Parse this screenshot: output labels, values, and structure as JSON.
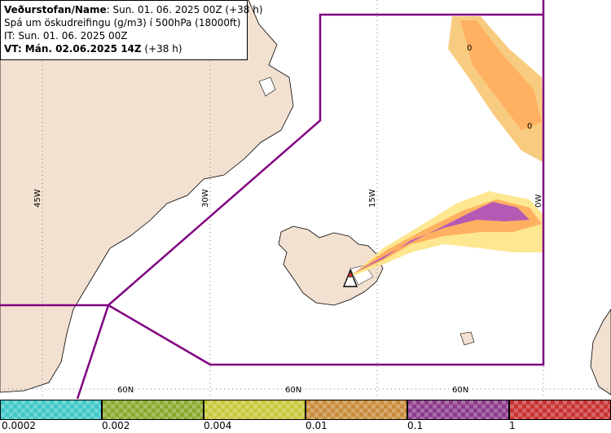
{
  "info": {
    "line1_bold": "Veðurstofan/Name",
    "line1_rest": ": Sun. 01. 06. 2025 00Z (+38 h)",
    "line2": "Spá um öskudreifingu (g/m3) í 500hPa (18000ft)",
    "line3": "IT: Sun. 01. 06. 2025 00Z",
    "line4_bold": "VT: Mán. 02.06.2025 14Z",
    "line4_rest": " (+38 h)"
  },
  "map": {
    "meridians": [
      "45W",
      "30W",
      "15W",
      "0W"
    ],
    "parallels": [
      "60N",
      "60N",
      "60N"
    ],
    "contour_labels": [
      "0",
      "0"
    ],
    "colors": {
      "land": "#f2e0d0",
      "boundary": "#800080",
      "grid": "#808080",
      "ocean": "#ffffff"
    }
  },
  "legend": {
    "thresholds": [
      "0.0002",
      "0.002",
      "0.004",
      "0.01",
      "0.1",
      "1"
    ],
    "colors": [
      "#40c8c8",
      "#8caa2c",
      "#c8c83c",
      "#c88c3c",
      "#8c3c8c",
      "#c83232"
    ]
  }
}
